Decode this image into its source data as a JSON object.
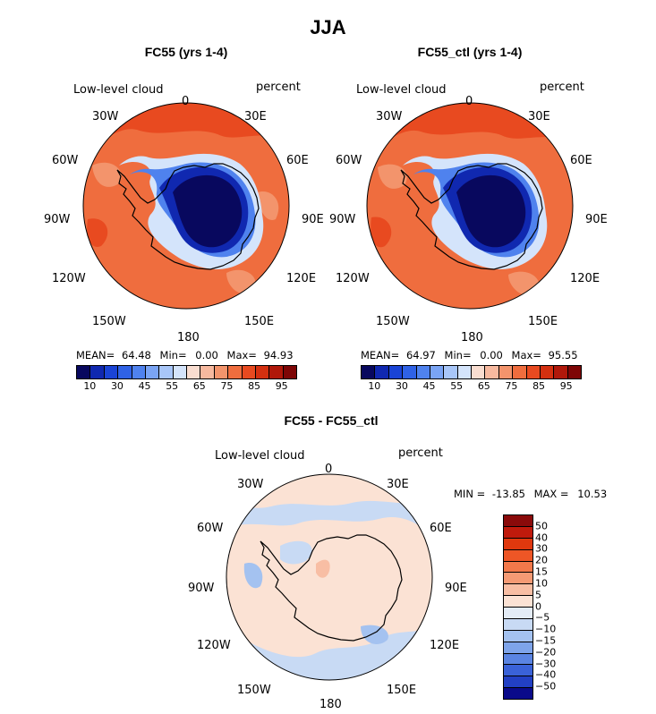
{
  "figure": {
    "title": "JJA"
  },
  "panels": [
    {
      "id": "top-left",
      "subtitle": "FC55 (yrs 1-4)",
      "variable": "Low-level cloud",
      "units": "percent",
      "stats": {
        "mean_label": "MEAN=",
        "mean": "64.48",
        "min_label": "Min=",
        "min": "0.00",
        "max_label": "Max=",
        "max": "94.93"
      },
      "colorbar_ticks": [
        "10",
        "30",
        "45",
        "55",
        "65",
        "75",
        "85",
        "95"
      ]
    },
    {
      "id": "top-right",
      "subtitle": "FC55_ctl (yrs 1-4)",
      "variable": "Low-level cloud",
      "units": "percent",
      "stats": {
        "mean_label": "MEAN=",
        "mean": "64.97",
        "min_label": "Min=",
        "min": "0.00",
        "max_label": "Max=",
        "max": "95.55"
      },
      "colorbar_ticks": [
        "10",
        "30",
        "45",
        "55",
        "65",
        "75",
        "85",
        "95"
      ]
    },
    {
      "id": "bottom",
      "subtitle": "FC55 - FC55_ctl",
      "variable": "Low-level cloud",
      "units": "percent",
      "stats": {
        "min_label": "MIN =",
        "min": "-13.85",
        "max_label": "MAX =",
        "max": "10.53"
      },
      "colorbar_ticks": [
        "50",
        "40",
        "30",
        "20",
        "15",
        "10",
        "5",
        "0",
        "−5",
        "−10",
        "−15",
        "−20",
        "−30",
        "−40",
        "−50"
      ]
    }
  ],
  "longitude_labels": [
    "0",
    "30E",
    "60E",
    "90E",
    "120E",
    "150E",
    "180",
    "150W",
    "120W",
    "90W",
    "60W",
    "30W"
  ],
  "colors": {
    "abs_scale": [
      "#08085e",
      "#1028b0",
      "#1a44d6",
      "#2f62e6",
      "#4f82ee",
      "#7aa4f4",
      "#a8c6f8",
      "#d4e4fb",
      "#f9ddd0",
      "#f7b99f",
      "#f3946c",
      "#ef6d3e",
      "#e84a20",
      "#d43010",
      "#b0180a",
      "#7e0606"
    ],
    "diff_scale": [
      "#8a0a0a",
      "#c01a0c",
      "#e0380e",
      "#ee5626",
      "#f2784a",
      "#f59a74",
      "#f8bea4",
      "#fbe2d4",
      "#e4ecf6",
      "#c8daf4",
      "#a4c2f0",
      "#7ea4ea",
      "#5a84e2",
      "#3a62d8",
      "#2240c4",
      "#0a0a8a"
    ]
  }
}
